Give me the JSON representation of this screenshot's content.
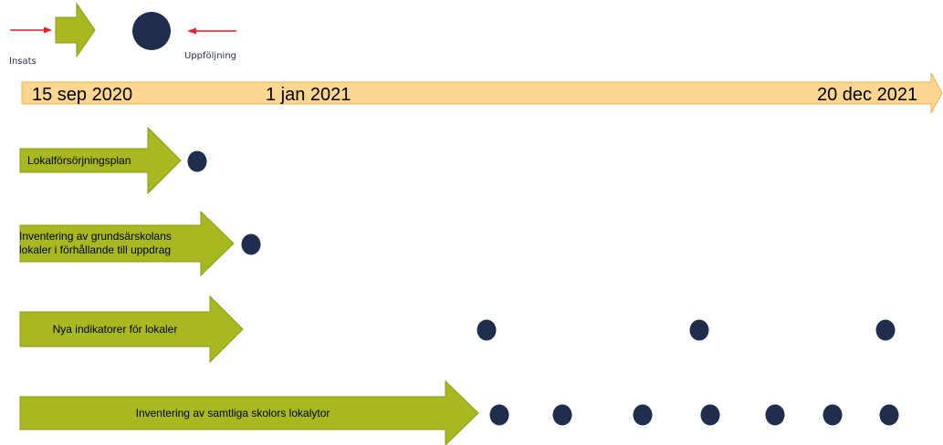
{
  "legend": {
    "activity_label": "Insats",
    "followup_label": "Uppföljning"
  },
  "timeline": {
    "start_label": "15 sep 2020",
    "mid_label": "1 jan 2021",
    "end_label": "20 dec 2021"
  },
  "activities": [
    {
      "label": "Lokalförsörjningsplan",
      "followups": 1
    },
    {
      "label": "Inventering av grundsärskolans lokaler i förhållande till uppdrag",
      "followups": 1
    },
    {
      "label": "Nya indikatorer för lokaler",
      "followups": 3
    },
    {
      "label": "Inventering av samtliga skolors lokalytor",
      "followups": 7
    }
  ],
  "colors": {
    "arrow_fill": "#a8b820",
    "arrow_stroke": "#8b9a14",
    "dot_fill": "#1f2d4e",
    "timeline_fill": "#fdd692",
    "timeline_stroke": "#f0b04a",
    "legend_pointer": "#ee1c24",
    "legend_text": "#1f2d4e"
  }
}
